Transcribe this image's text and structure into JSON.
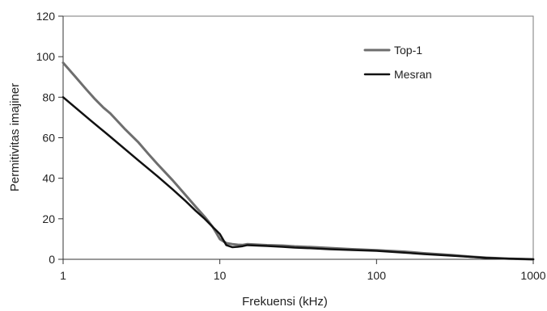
{
  "chart_data": {
    "type": "line",
    "xscale": "log",
    "xlim": [
      1,
      1000
    ],
    "ylim": [
      0,
      120
    ],
    "xticks": [
      1,
      10,
      100,
      1000
    ],
    "xtick_labels": [
      "1",
      "10",
      "100",
      "1000"
    ],
    "yticks": [
      0,
      20,
      40,
      60,
      80,
      100,
      120
    ],
    "ytick_labels": [
      "0",
      "20",
      "40",
      "60",
      "80",
      "100",
      "120"
    ],
    "xlabel": "Frekuensi (kHz)",
    "ylabel": "Permitivitas imajiner",
    "grid": false,
    "legend_position": "top-right",
    "series": [
      {
        "name": "Top-1",
        "color": "#6e6e6e",
        "x": [
          1,
          1.2,
          1.4,
          1.6,
          1.8,
          2,
          2.5,
          3,
          3.5,
          4,
          5,
          6,
          7,
          8,
          8.5,
          9,
          9.5,
          10,
          11,
          12,
          13,
          14,
          15,
          20,
          25,
          30,
          40,
          50,
          70,
          100,
          150,
          200,
          300,
          400,
          500,
          700,
          1000
        ],
        "values": [
          97,
          90,
          84,
          79,
          75,
          72,
          64,
          58,
          52,
          47,
          39,
          32,
          26,
          21,
          18.5,
          16,
          13,
          10,
          8,
          7.5,
          7.2,
          7.1,
          7.5,
          7,
          6.8,
          6.4,
          6,
          5.6,
          5,
          4.5,
          3.8,
          3,
          2.1,
          1.3,
          0.8,
          0.3,
          0
        ]
      },
      {
        "name": "Mesran",
        "color": "#111111",
        "x": [
          1,
          1.5,
          2,
          3,
          4,
          5,
          6,
          7,
          8,
          9,
          10,
          11,
          12,
          13,
          14,
          15,
          20,
          25,
          30,
          40,
          50,
          70,
          100,
          150,
          200,
          300,
          400,
          500,
          700,
          1000
        ],
        "values": [
          80,
          68.5,
          60.5,
          49,
          41,
          34.5,
          29,
          24,
          20,
          16,
          12.5,
          7,
          6,
          6.2,
          6.5,
          7,
          6.6,
          6.2,
          5.8,
          5.4,
          5,
          4.6,
          4.2,
          3.3,
          2.6,
          1.8,
          1.2,
          0.7,
          0.3,
          0
        ]
      }
    ]
  }
}
